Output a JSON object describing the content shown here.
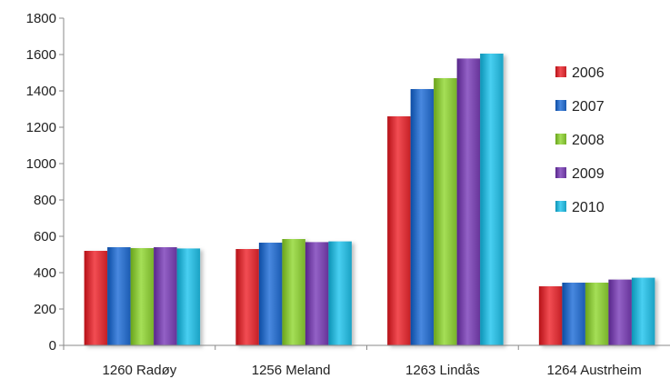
{
  "chart_data": {
    "type": "bar",
    "title": "",
    "xlabel": "",
    "ylabel": "",
    "categories": [
      "1260 Radøy",
      "1256 Meland",
      "1263 Lindås",
      "1264 Austrheim"
    ],
    "series": [
      {
        "name": "2006",
        "color": "#d9343a",
        "values": [
          520,
          530,
          1260,
          325
        ]
      },
      {
        "name": "2007",
        "color": "#2f6fc6",
        "values": [
          540,
          565,
          1410,
          345
        ]
      },
      {
        "name": "2008",
        "color": "#8cc63e",
        "values": [
          535,
          585,
          1470,
          345
        ]
      },
      {
        "name": "2009",
        "color": "#7a48ad",
        "values": [
          540,
          568,
          1578,
          362
        ]
      },
      {
        "name": "2010",
        "color": "#2fb6d8",
        "values": [
          533,
          572,
          1605,
          372
        ]
      }
    ],
    "yticks": [
      "0",
      "200",
      "400",
      "600",
      "800",
      "1000",
      "1200",
      "1400",
      "1600",
      "1800"
    ],
    "ylim": [
      0,
      1800
    ],
    "grid": false,
    "legend": "right"
  }
}
